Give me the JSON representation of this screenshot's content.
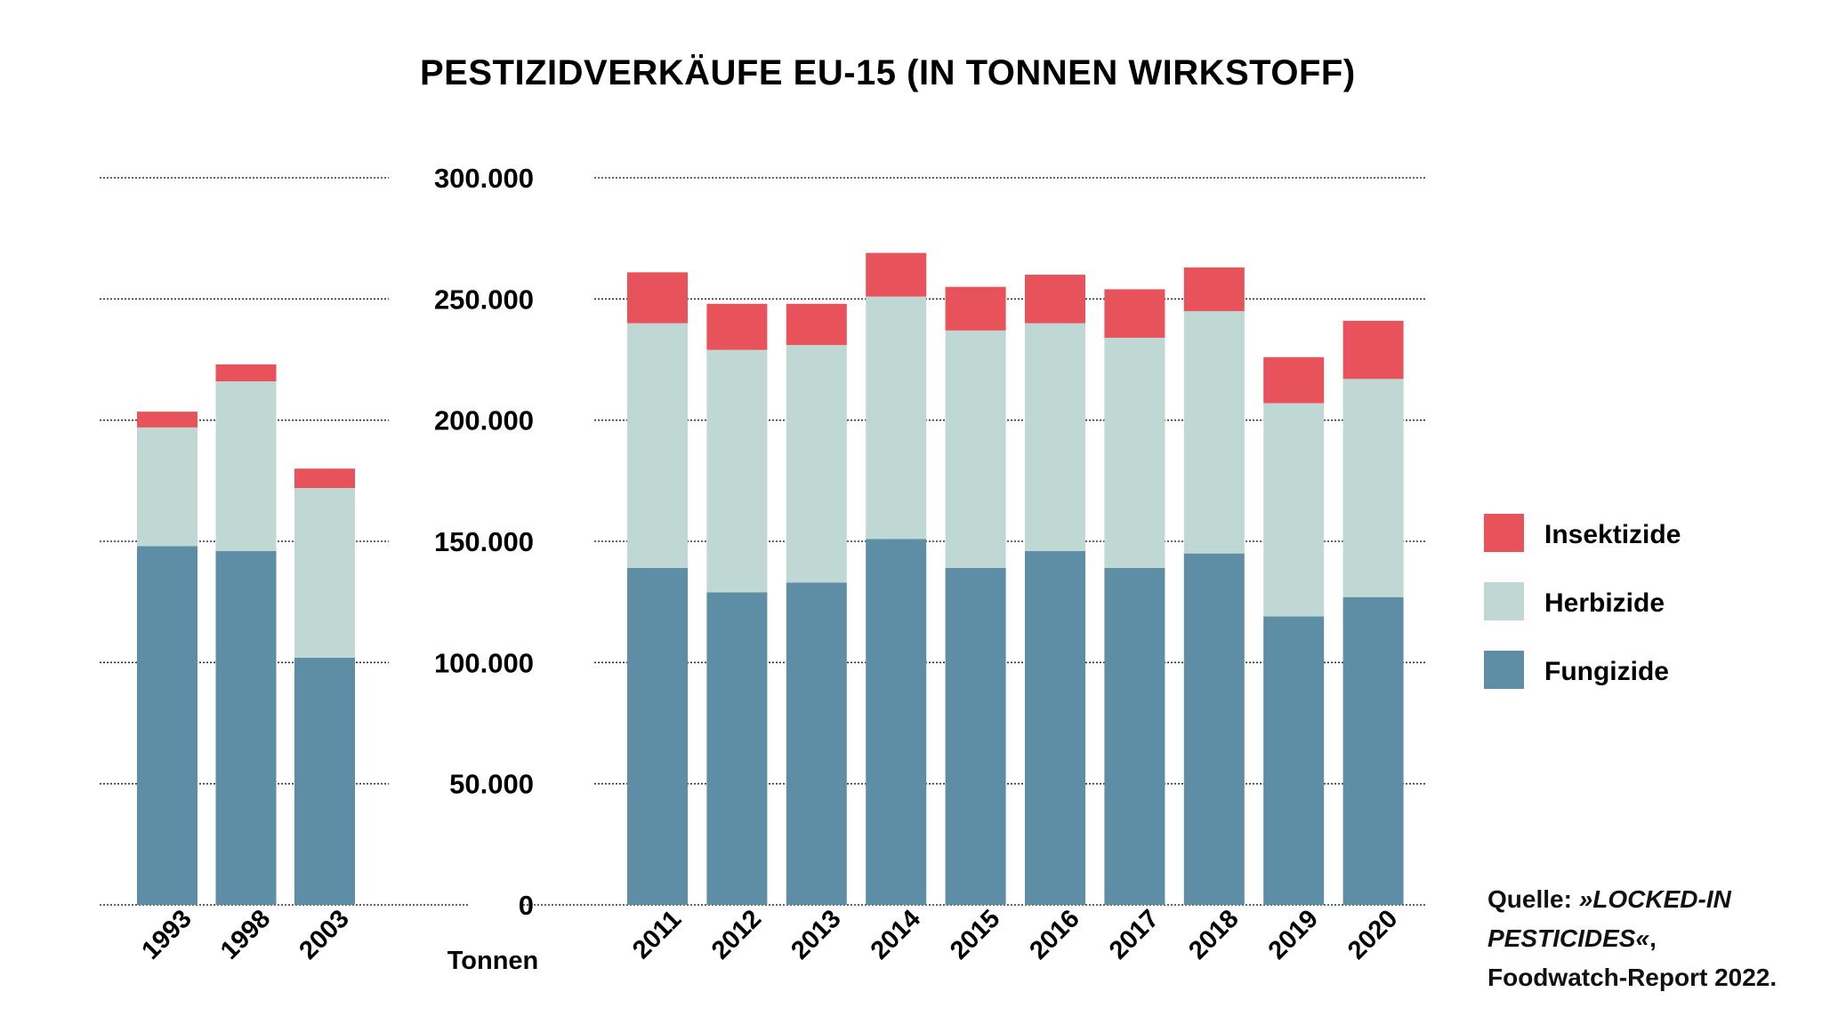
{
  "chart_data": {
    "type": "bar",
    "stacked": true,
    "title": "PESTIZIDVERKÄUFE EU-15 (IN TONNEN WIRKSTOFF)",
    "ylabel": "Tonnen",
    "ylim": [
      0,
      300000
    ],
    "yticks": [
      "0",
      "50.000",
      "100.000",
      "150.000",
      "200.000",
      "250.000",
      "300.000"
    ],
    "grid": true,
    "legend_position": "right",
    "panels": [
      {
        "categories": [
          "1993",
          "1998",
          "2003"
        ],
        "series": [
          {
            "name": "Fungizide",
            "values": [
              148000,
              146000,
              102000
            ]
          },
          {
            "name": "Herbizide",
            "values": [
              49000,
              70000,
              70000
            ]
          },
          {
            "name": "Insektizide",
            "values": [
              6500,
              7000,
              8000
            ]
          }
        ]
      },
      {
        "categories": [
          "2011",
          "2012",
          "2013",
          "2014",
          "2015",
          "2016",
          "2017",
          "2018",
          "2019",
          "2020"
        ],
        "series": [
          {
            "name": "Fungizide",
            "values": [
              139000,
              129000,
              133000,
              151000,
              139000,
              146000,
              139000,
              145000,
              119000,
              127000
            ]
          },
          {
            "name": "Herbizide",
            "values": [
              101000,
              100000,
              98000,
              100000,
              98000,
              94000,
              95000,
              100000,
              88000,
              90000
            ]
          },
          {
            "name": "Insektizide",
            "values": [
              21000,
              19000,
              17000,
              18000,
              18000,
              20000,
              20000,
              18000,
              19000,
              24000
            ]
          }
        ]
      }
    ],
    "legend": [
      {
        "name": "Insektizide",
        "color": "#e8525a"
      },
      {
        "name": "Herbizide",
        "color": "#bfd8d4"
      },
      {
        "name": "Fungizide",
        "color": "#5d8ea5"
      }
    ],
    "colors": {
      "Fungizide": "#5d8ea5",
      "Herbizide": "#bfd8d4",
      "Insektizide": "#e8525a"
    }
  },
  "source": {
    "prefix": "Quelle: ",
    "emphasis": "»LOCKED-IN PESTICIDES«",
    "suffix": ", Foodwatch-Report 2022."
  }
}
